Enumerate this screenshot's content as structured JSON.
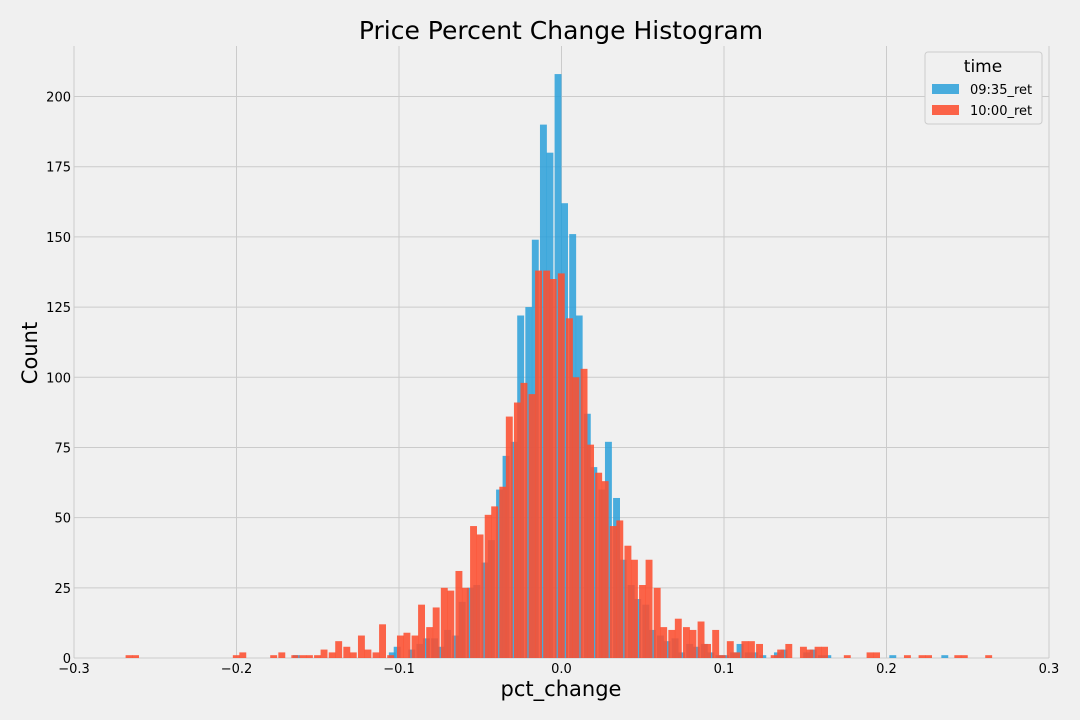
{
  "chart_data": {
    "type": "bar",
    "title": "Price Percent Change Histogram",
    "xlabel": "pct_change",
    "ylabel": "Count",
    "xlim": [
      -0.3,
      0.3
    ],
    "ylim": [
      0,
      218
    ],
    "grid": true,
    "x_ticks": [
      -0.3,
      -0.2,
      -0.1,
      0.0,
      0.1,
      0.2,
      0.3
    ],
    "x_tick_labels": [
      "−0.3",
      "−0.2",
      "−0.1",
      "0.0",
      "0.1",
      "0.2",
      "0.3"
    ],
    "y_ticks": [
      0,
      25,
      50,
      75,
      100,
      125,
      150,
      175,
      200
    ],
    "y_tick_labels": [
      "0",
      "25",
      "50",
      "75",
      "100",
      "125",
      "150",
      "175",
      "200"
    ],
    "legend": {
      "title": "time",
      "placement": "top-right"
    },
    "bin_width": 0.0045,
    "series": [
      {
        "name": "09:35_ret",
        "color": "#30a2da",
        "points": [
          [
            -0.163,
            1
          ],
          [
            -0.104,
            2
          ],
          [
            -0.101,
            4
          ],
          [
            -0.092,
            3
          ],
          [
            -0.087,
            5
          ],
          [
            -0.083,
            7
          ],
          [
            -0.078,
            7
          ],
          [
            -0.074,
            4
          ],
          [
            -0.07,
            10
          ],
          [
            -0.065,
            8
          ],
          [
            -0.061,
            20
          ],
          [
            -0.056,
            25
          ],
          [
            -0.052,
            26
          ],
          [
            -0.047,
            34
          ],
          [
            -0.043,
            42
          ],
          [
            -0.038,
            60
          ],
          [
            -0.034,
            72
          ],
          [
            -0.029,
            77
          ],
          [
            -0.025,
            122
          ],
          [
            -0.02,
            125
          ],
          [
            -0.016,
            149
          ],
          [
            -0.011,
            190
          ],
          [
            -0.007,
            180
          ],
          [
            -0.002,
            208
          ],
          [
            0.002,
            162
          ],
          [
            0.007,
            151
          ],
          [
            0.011,
            122
          ],
          [
            0.016,
            87
          ],
          [
            0.02,
            68
          ],
          [
            0.025,
            60
          ],
          [
            0.029,
            77
          ],
          [
            0.034,
            57
          ],
          [
            0.038,
            35
          ],
          [
            0.043,
            26
          ],
          [
            0.047,
            21
          ],
          [
            0.052,
            19
          ],
          [
            0.056,
            10
          ],
          [
            0.061,
            8
          ],
          [
            0.065,
            6
          ],
          [
            0.07,
            7
          ],
          [
            0.074,
            2
          ],
          [
            0.079,
            5
          ],
          [
            0.083,
            4
          ],
          [
            0.088,
            5
          ],
          [
            0.092,
            2
          ],
          [
            0.097,
            1
          ],
          [
            0.101,
            1
          ],
          [
            0.106,
            2
          ],
          [
            0.11,
            5
          ],
          [
            0.115,
            2
          ],
          [
            0.119,
            2
          ],
          [
            0.124,
            1
          ],
          [
            0.133,
            2
          ],
          [
            0.137,
            3
          ],
          [
            0.151,
            2
          ],
          [
            0.155,
            3
          ],
          [
            0.16,
            1
          ],
          [
            0.164,
            1
          ],
          [
            0.204,
            1
          ],
          [
            0.236,
            1
          ]
        ]
      },
      {
        "name": "10:00_ret",
        "color": "#fc4f30",
        "points": [
          [
            -0.266,
            1
          ],
          [
            -0.262,
            1
          ],
          [
            -0.2,
            1
          ],
          [
            -0.196,
            2
          ],
          [
            -0.177,
            1
          ],
          [
            -0.172,
            2
          ],
          [
            -0.164,
            1
          ],
          [
            -0.159,
            1
          ],
          [
            -0.155,
            1
          ],
          [
            -0.15,
            1
          ],
          [
            -0.146,
            3
          ],
          [
            -0.141,
            2
          ],
          [
            -0.137,
            6
          ],
          [
            -0.132,
            4
          ],
          [
            -0.128,
            2
          ],
          [
            -0.123,
            8
          ],
          [
            -0.119,
            3
          ],
          [
            -0.114,
            2
          ],
          [
            -0.11,
            12
          ],
          [
            -0.105,
            1
          ],
          [
            -0.099,
            8
          ],
          [
            -0.095,
            9
          ],
          [
            -0.09,
            8
          ],
          [
            -0.086,
            19
          ],
          [
            -0.081,
            11
          ],
          [
            -0.077,
            18
          ],
          [
            -0.072,
            25
          ],
          [
            -0.068,
            24
          ],
          [
            -0.063,
            31
          ],
          [
            -0.059,
            25
          ],
          [
            -0.054,
            47
          ],
          [
            -0.05,
            44
          ],
          [
            -0.045,
            51
          ],
          [
            -0.041,
            54
          ],
          [
            -0.036,
            61
          ],
          [
            -0.032,
            86
          ],
          [
            -0.027,
            91
          ],
          [
            -0.023,
            98
          ],
          [
            -0.018,
            94
          ],
          [
            -0.014,
            138
          ],
          [
            -0.009,
            138
          ],
          [
            -0.005,
            135
          ],
          [
            0.0,
            137
          ],
          [
            0.005,
            121
          ],
          [
            0.009,
            100
          ],
          [
            0.014,
            103
          ],
          [
            0.018,
            76
          ],
          [
            0.023,
            66
          ],
          [
            0.027,
            63
          ],
          [
            0.032,
            47
          ],
          [
            0.036,
            49
          ],
          [
            0.041,
            40
          ],
          [
            0.045,
            35
          ],
          [
            0.05,
            26
          ],
          [
            0.054,
            35
          ],
          [
            0.059,
            25
          ],
          [
            0.063,
            11
          ],
          [
            0.068,
            10
          ],
          [
            0.072,
            14
          ],
          [
            0.077,
            11
          ],
          [
            0.081,
            10
          ],
          [
            0.086,
            13
          ],
          [
            0.09,
            5
          ],
          [
            0.095,
            10
          ],
          [
            0.099,
            1
          ],
          [
            0.104,
            6
          ],
          [
            0.108,
            2
          ],
          [
            0.113,
            6
          ],
          [
            0.117,
            6
          ],
          [
            0.122,
            5
          ],
          [
            0.131,
            1
          ],
          [
            0.135,
            3
          ],
          [
            0.14,
            5
          ],
          [
            0.149,
            4
          ],
          [
            0.153,
            3
          ],
          [
            0.158,
            4
          ],
          [
            0.162,
            4
          ],
          [
            0.176,
            1
          ],
          [
            0.19,
            2
          ],
          [
            0.194,
            2
          ],
          [
            0.213,
            1
          ],
          [
            0.222,
            1
          ],
          [
            0.226,
            1
          ],
          [
            0.244,
            1
          ],
          [
            0.248,
            1
          ],
          [
            0.263,
            1
          ]
        ]
      }
    ]
  }
}
